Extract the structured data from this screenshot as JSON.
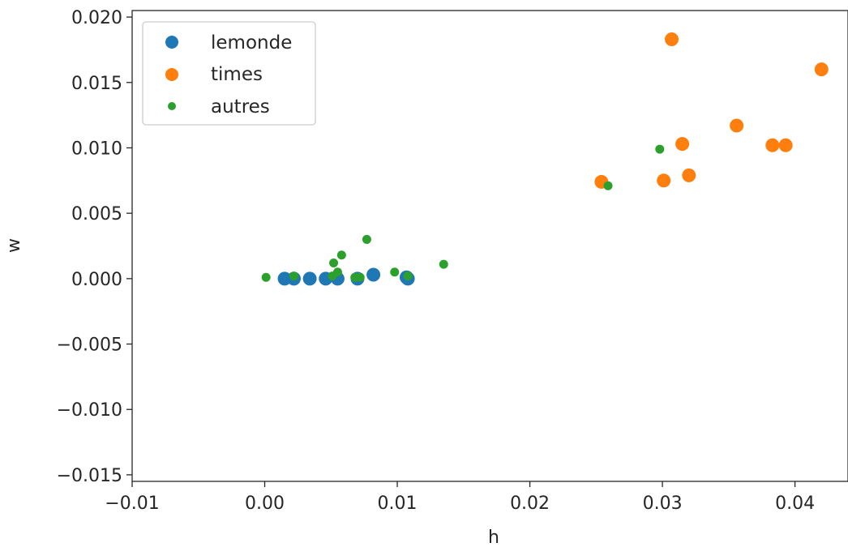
{
  "chart_data": {
    "type": "scatter",
    "xlabel": "h",
    "ylabel": "w",
    "xlim": [
      -0.01,
      0.044
    ],
    "ylim": [
      -0.0155,
      0.0205
    ],
    "x_ticks": [
      -0.01,
      0.0,
      0.01,
      0.02,
      0.03,
      0.04
    ],
    "x_tick_labels": [
      "−0.01",
      "0.00",
      "0.01",
      "0.02",
      "0.03",
      "0.04"
    ],
    "y_ticks": [
      -0.015,
      -0.01,
      -0.005,
      0.0,
      0.005,
      0.01,
      0.015,
      0.02
    ],
    "y_tick_labels": [
      "−0.015",
      "−0.010",
      "−0.005",
      "0.000",
      "0.005",
      "0.010",
      "0.015",
      "0.020"
    ],
    "grid": false,
    "legend_position": "top-left",
    "series": [
      {
        "name": "lemonde",
        "color": "#1f77b4",
        "marker_size": "large",
        "points": [
          [
            0.0015,
            0.0
          ],
          [
            0.0022,
            0.0
          ],
          [
            0.0034,
            0.0
          ],
          [
            0.0046,
            0.0
          ],
          [
            0.0055,
            0.0
          ],
          [
            0.007,
            0.0
          ],
          [
            0.0082,
            0.0003
          ],
          [
            0.0107,
            0.0001
          ],
          [
            0.0108,
            0.0
          ]
        ]
      },
      {
        "name": "times",
        "color": "#ff7f0e",
        "marker_size": "large",
        "points": [
          [
            0.0254,
            0.0074
          ],
          [
            0.0301,
            0.0075
          ],
          [
            0.0307,
            0.0183
          ],
          [
            0.0315,
            0.0103
          ],
          [
            0.032,
            0.0079
          ],
          [
            0.0356,
            0.0117
          ],
          [
            0.0383,
            0.0102
          ],
          [
            0.0393,
            0.0102
          ],
          [
            0.042,
            0.016
          ]
        ]
      },
      {
        "name": "autres",
        "color": "#2ca02c",
        "marker_size": "small",
        "points": [
          [
            0.0001,
            0.0001
          ],
          [
            0.0022,
            0.0002
          ],
          [
            0.0051,
            0.0002
          ],
          [
            0.0052,
            0.0012
          ],
          [
            0.0055,
            0.0005
          ],
          [
            0.0058,
            0.0018
          ],
          [
            0.0068,
            0.0001
          ],
          [
            0.0072,
            0.0001
          ],
          [
            0.0077,
            0.003
          ],
          [
            0.0098,
            0.0005
          ],
          [
            0.0108,
            0.0002
          ],
          [
            0.0135,
            0.0011
          ],
          [
            0.0259,
            0.0071
          ],
          [
            0.0298,
            0.0099
          ]
        ]
      }
    ]
  }
}
